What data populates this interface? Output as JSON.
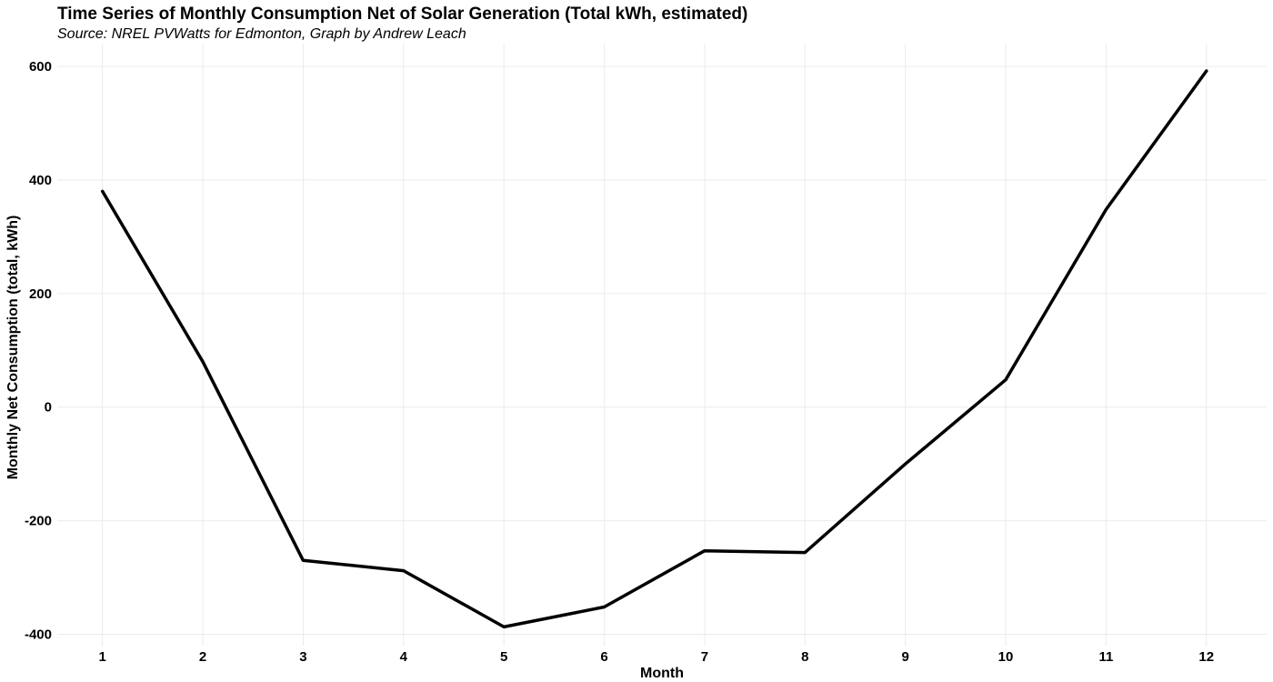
{
  "chart_data": {
    "type": "line",
    "title": "Time Series of Monthly Consumption Net of Solar Generation (Total kWh, estimated)",
    "subtitle": "Source: NREL PVWatts for Edmonton, Graph by Andrew Leach",
    "xlabel": "Month",
    "ylabel": "Monthly Net Consumption (total, kWh)",
    "x": [
      1,
      2,
      3,
      4,
      5,
      6,
      7,
      8,
      9,
      10,
      11,
      12
    ],
    "values": [
      380,
      80,
      -270,
      -288,
      -387,
      -352,
      -253,
      -256,
      -100,
      48,
      348,
      592
    ],
    "xticks": [
      "1",
      "2",
      "3",
      "4",
      "5",
      "6",
      "7",
      "8",
      "9",
      "10",
      "11",
      "12"
    ],
    "yticks": [
      -400,
      -200,
      0,
      200,
      400,
      600
    ],
    "xlim": [
      0.55,
      12.6
    ],
    "ylim": [
      -420,
      640
    ],
    "grid": true,
    "legend": "none",
    "line_color": "#000000",
    "grid_color": "#ebebeb"
  }
}
